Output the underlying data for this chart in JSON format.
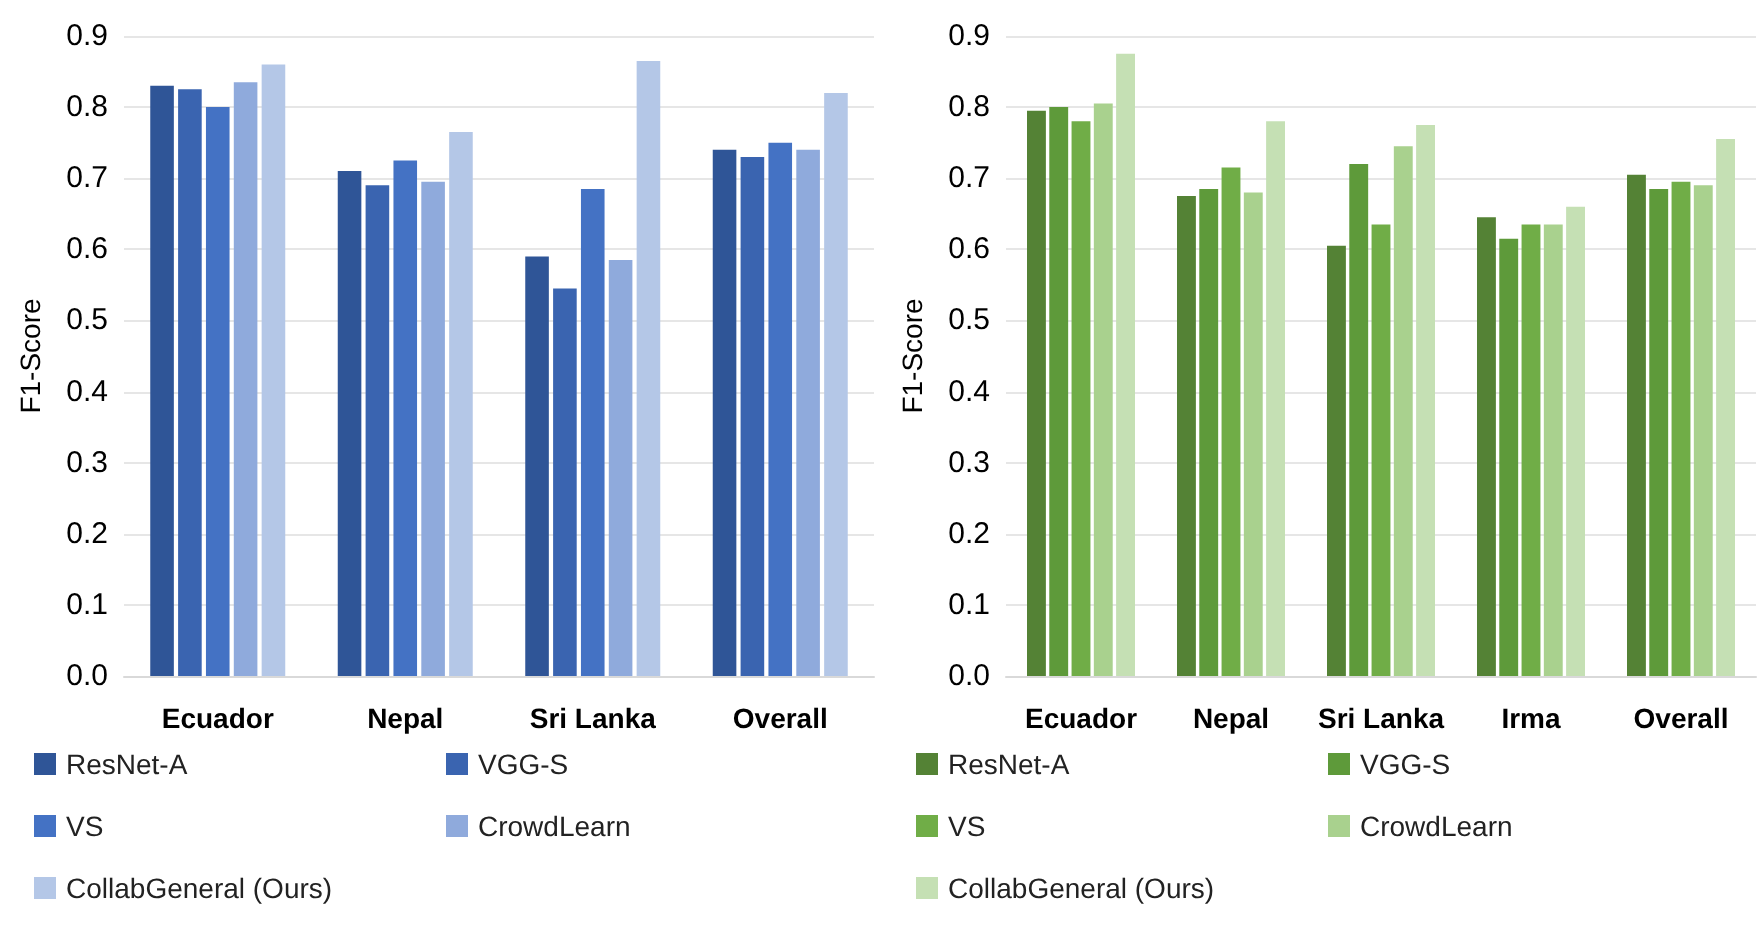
{
  "chart_data": [
    {
      "type": "bar",
      "ylabel": "F1-Score",
      "categories": [
        "Ecuador",
        "Nepal",
        "Sri Lanka",
        "Overall"
      ],
      "series": [
        {
          "name": "ResNet-A",
          "color": "#2f5597",
          "values": [
            0.83,
            0.71,
            0.59,
            0.74
          ]
        },
        {
          "name": "VGG-S",
          "color": "#3a64b0",
          "values": [
            0.825,
            0.69,
            0.545,
            0.73
          ]
        },
        {
          "name": "VS",
          "color": "#4472c4",
          "values": [
            0.8,
            0.725,
            0.685,
            0.75
          ]
        },
        {
          "name": "CrowdLearn",
          "color": "#8faadc",
          "values": [
            0.835,
            0.695,
            0.585,
            0.74
          ]
        },
        {
          "name": "CollabGeneral (Ours)",
          "color": "#b4c7e7",
          "values": [
            0.86,
            0.765,
            0.865,
            0.82
          ]
        }
      ],
      "ylim": [
        0,
        0.9
      ],
      "yticks": [
        {
          "value": 0,
          "label": "0.0"
        },
        {
          "value": 0.1,
          "label": "0.1"
        },
        {
          "value": 0.2,
          "label": "0.2"
        },
        {
          "value": 0.3,
          "label": "0.3"
        },
        {
          "value": 0.4,
          "label": "0.4"
        },
        {
          "value": 0.5,
          "label": "0.5"
        },
        {
          "value": 0.6,
          "label": "0.6"
        },
        {
          "value": 0.7,
          "label": "0.7"
        },
        {
          "value": 0.8,
          "label": "0.8"
        },
        {
          "value": 0.9,
          "label": "0.9"
        }
      ],
      "grid": "y",
      "legend": "bottom"
    },
    {
      "type": "bar",
      "ylabel": "F1-Score",
      "categories": [
        "Ecuador",
        "Nepal",
        "Sri Lanka",
        "Irma",
        "Overall"
      ],
      "series": [
        {
          "name": "ResNet-A",
          "color": "#548235",
          "values": [
            0.795,
            0.675,
            0.605,
            0.645,
            0.705
          ]
        },
        {
          "name": "VGG-S",
          "color": "#5e9a3a",
          "values": [
            0.8,
            0.685,
            0.72,
            0.615,
            0.685
          ]
        },
        {
          "name": "VS",
          "color": "#70ad47",
          "values": [
            0.78,
            0.715,
            0.635,
            0.635,
            0.695
          ]
        },
        {
          "name": "CrowdLearn",
          "color": "#a9d18e",
          "values": [
            0.805,
            0.68,
            0.745,
            0.635,
            0.69
          ]
        },
        {
          "name": "CollabGeneral (Ours)",
          "color": "#c5e0b4",
          "values": [
            0.875,
            0.78,
            0.775,
            0.66,
            0.755
          ]
        }
      ],
      "ylim": [
        0,
        0.9
      ],
      "yticks": [
        {
          "value": 0,
          "label": "0.0"
        },
        {
          "value": 0.1,
          "label": "0.1"
        },
        {
          "value": 0.2,
          "label": "0.2"
        },
        {
          "value": 0.3,
          "label": "0.3"
        },
        {
          "value": 0.4,
          "label": "0.4"
        },
        {
          "value": 0.5,
          "label": "0.5"
        },
        {
          "value": 0.6,
          "label": "0.6"
        },
        {
          "value": 0.7,
          "label": "0.7"
        },
        {
          "value": 0.8,
          "label": "0.8"
        },
        {
          "value": 0.9,
          "label": "0.9"
        }
      ],
      "grid": "y",
      "legend": "bottom"
    }
  ]
}
